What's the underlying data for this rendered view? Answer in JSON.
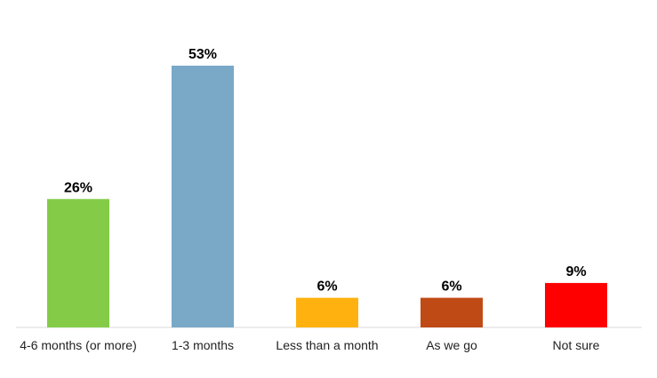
{
  "chart_data": {
    "type": "bar",
    "categories": [
      "4-6 months (or more)",
      "1-3 months",
      "Less than a month",
      "As we go",
      "Not sure"
    ],
    "values": [
      26,
      53,
      6,
      6,
      9
    ],
    "data_labels": [
      "26%",
      "53%",
      "6%",
      "6%",
      "9%"
    ],
    "colors": [
      "#84cc47",
      "#79a9c7",
      "#ffb20f",
      "#c04a15",
      "#ff0000"
    ],
    "ylim": [
      0,
      53
    ],
    "grid": false,
    "legend": "none",
    "title": "",
    "xlabel": "",
    "ylabel": ""
  }
}
